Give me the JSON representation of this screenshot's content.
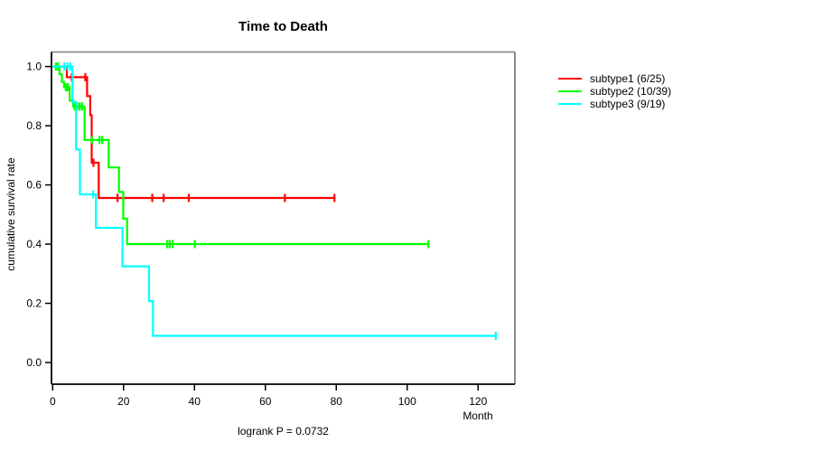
{
  "title": "Time to Death",
  "footer": "logrank P = 0.0732",
  "x_axis": {
    "label": "Month",
    "ticks": [
      {
        "v": 0,
        "label": "0"
      },
      {
        "v": 20,
        "label": "20"
      },
      {
        "v": 40,
        "label": "40"
      },
      {
        "v": 60,
        "label": "60"
      },
      {
        "v": 80,
        "label": "80"
      },
      {
        "v": 100,
        "label": "100"
      },
      {
        "v": 120,
        "label": "120"
      }
    ]
  },
  "y_axis": {
    "label": "cumulative survival rate",
    "ticks": [
      {
        "v": 0.0,
        "label": "0.0"
      },
      {
        "v": 0.2,
        "label": "0.2"
      },
      {
        "v": 0.4,
        "label": "0.4"
      },
      {
        "v": 0.6,
        "label": "0.6"
      },
      {
        "v": 0.8,
        "label": "0.8"
      },
      {
        "v": 1.0,
        "label": "1.0"
      }
    ]
  },
  "legend": [
    {
      "label": "subtype1 (6/25)",
      "color": "#ff0000"
    },
    {
      "label": "subtype2 (10/39)",
      "color": "#00ff00"
    },
    {
      "label": "subtype3 (9/19)",
      "color": "#00ffff"
    }
  ],
  "colors": {
    "subtype1": "#ff0000",
    "subtype2": "#00ff00",
    "subtype3": "#00ffff",
    "box_top": "#808080",
    "box_right": "#6e6e6e",
    "axis": "#000000"
  },
  "chart_data": {
    "type": "line",
    "subtype": "kaplan-meier-step",
    "title": "Time to Death",
    "xlabel": "Month",
    "ylabel": "cumulative survival rate",
    "xlim": [
      0,
      130
    ],
    "ylim": [
      0,
      1.04
    ],
    "grid": false,
    "legend_position": "right-outside",
    "annotation": "logrank P = 0.0732",
    "series": [
      {
        "name": "subtype1 (6/25)",
        "color": "#ff0000",
        "steps": [
          [
            0,
            1.0
          ],
          [
            4.0,
            0.964
          ],
          [
            9.7,
            0.9
          ],
          [
            10.6,
            0.836
          ],
          [
            11.0,
            0.675
          ],
          [
            13.0,
            0.556
          ]
        ],
        "end": 79.5,
        "censors": [
          [
            5.4,
            0.964
          ],
          [
            9.2,
            0.964
          ],
          [
            11.5,
            0.675
          ],
          [
            18.3,
            0.556
          ],
          [
            28.1,
            0.556
          ],
          [
            31.3,
            0.556
          ],
          [
            38.4,
            0.556
          ],
          [
            65.5,
            0.556
          ],
          [
            79.5,
            0.556
          ]
        ]
      },
      {
        "name": "subtype2 (10/39)",
        "color": "#00ff00",
        "steps": [
          [
            0,
            1.0
          ],
          [
            1.9,
            0.974
          ],
          [
            2.6,
            0.948
          ],
          [
            3.2,
            0.93
          ],
          [
            4.8,
            0.885
          ],
          [
            5.8,
            0.865
          ],
          [
            9.0,
            0.752
          ],
          [
            15.8,
            0.659
          ],
          [
            18.7,
            0.576
          ],
          [
            19.9,
            0.486
          ],
          [
            21.0,
            0.4
          ]
        ],
        "end": 106,
        "censors": [
          [
            0.9,
            1.0
          ],
          [
            1.5,
            1.0
          ],
          [
            3.7,
            0.93
          ],
          [
            4.3,
            0.93
          ],
          [
            6.2,
            0.865
          ],
          [
            6.9,
            0.865
          ],
          [
            7.6,
            0.865
          ],
          [
            8.3,
            0.865
          ],
          [
            11.1,
            0.752
          ],
          [
            13.2,
            0.752
          ],
          [
            14.0,
            0.752
          ],
          [
            32.3,
            0.4
          ],
          [
            33.0,
            0.4
          ],
          [
            33.8,
            0.4
          ],
          [
            40.1,
            0.4
          ],
          [
            106,
            0.4
          ]
        ]
      },
      {
        "name": "subtype3 (9/19)",
        "color": "#00ffff",
        "steps": [
          [
            0,
            1.0
          ],
          [
            5.6,
            0.88
          ],
          [
            6.6,
            0.72
          ],
          [
            7.7,
            0.568
          ],
          [
            12.2,
            0.455
          ],
          [
            19.7,
            0.325
          ],
          [
            27.2,
            0.207
          ],
          [
            28.3,
            0.09
          ]
        ],
        "end": 125,
        "censors": [
          [
            3.3,
            1.0
          ],
          [
            4.2,
            1.0
          ],
          [
            5.0,
            1.0
          ],
          [
            11.4,
            0.568
          ],
          [
            125,
            0.09
          ]
        ]
      }
    ]
  }
}
